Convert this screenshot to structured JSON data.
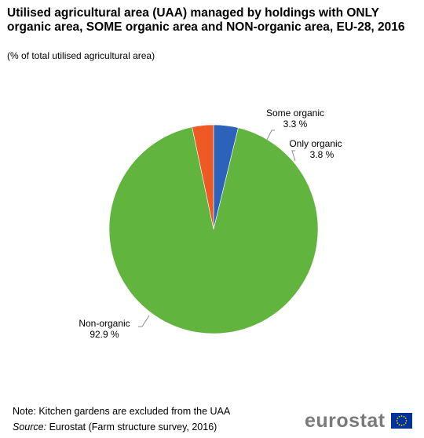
{
  "header": {
    "title": "Utilised agricultural area (UAA) managed by holdings with ONLY organic area, SOME organic area and NON-organic area, EU-28, 2016",
    "subtitle": "(% of total utilised agricultural area)"
  },
  "footer": {
    "note": "Note: Kitchen gardens are excluded from the UAA",
    "source_label": "Source:",
    "source_text": "Eurostat (Farm structure survey, 2016)",
    "brand": "eurostat"
  },
  "chart_data": {
    "type": "pie",
    "title": "Utilised agricultural area (UAA) managed by holdings with ONLY organic area, SOME organic area and NON-organic area, EU-28, 2016",
    "unit": "% of total utilised agricultural area",
    "legend": "none",
    "slices": [
      {
        "label": "Only organic",
        "value": 3.8,
        "display": "3.8 %",
        "color": "#2c62ba"
      },
      {
        "label": "Non-organic",
        "value": 92.9,
        "display": "92.9 %",
        "color": "#61b43e"
      },
      {
        "label": "Some organic",
        "value": 3.3,
        "display": "3.3 %",
        "color": "#ee5a24"
      }
    ]
  },
  "colors": {
    "leader_line": "#8c8c8c",
    "brand_text": "#7a7a7a",
    "flag_blue": "#003399",
    "flag_star": "#ffcc00"
  }
}
